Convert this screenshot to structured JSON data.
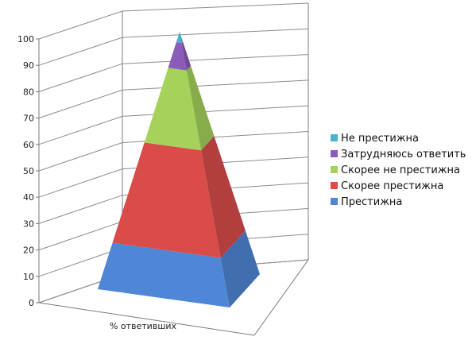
{
  "chart_data": {
    "type": "bar",
    "variant": "stacked-100-pyramid-3d",
    "categories": [
      "% ответивших"
    ],
    "ylim": [
      0,
      100
    ],
    "yticks": [
      0,
      10,
      20,
      30,
      40,
      50,
      60,
      70,
      80,
      90,
      100
    ],
    "grid": true,
    "legend_position": "right",
    "series": [
      {
        "name": "Престижна",
        "values": [
          18
        ],
        "color": "#4f86d6"
      },
      {
        "name": "Скорее престижна",
        "values": [
          39
        ],
        "color": "#d94c4a"
      },
      {
        "name": "Скорее не престижна",
        "values": [
          29
        ],
        "color": "#a5d25b"
      },
      {
        "name": "Затрудняюсь ответить",
        "values": [
          10
        ],
        "color": "#8a5cb8"
      },
      {
        "name": "Не престижна",
        "values": [
          4
        ],
        "color": "#4ab3cc"
      }
    ]
  }
}
